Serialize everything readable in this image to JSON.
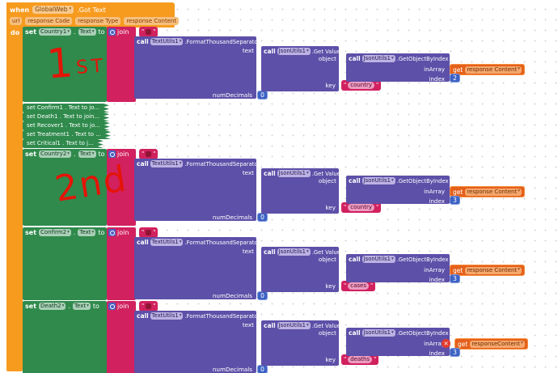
{
  "colors": {
    "event_orange": "#F79B1F",
    "setter_green": "#2F8A4C",
    "text_pink": "#D1215F",
    "procedure_purple": "#5D50A8",
    "number_blue": "#3D62C4",
    "variable_orange": "#E5601A",
    "error_red": "#E23B2E",
    "annotation_red": "#E41408"
  },
  "labels": {
    "when": "when",
    "do": "do",
    "set": "set",
    "dot": ".",
    "to": "to",
    "call": "call",
    "join": "join",
    "get": "get",
    "text": "text",
    "object": "object",
    "key": "key",
    "inArray": "inArray",
    "index": "index",
    "numDecimals": "numDecimals"
  },
  "when_block": {
    "component": "GlobalWeb",
    "event": ".Got Text",
    "params": [
      "url",
      "response Code",
      "response Type",
      "response Content"
    ]
  },
  "groups": [
    {
      "set_var": "Country1",
      "set_prop": "Text",
      "fts_component": "TextUtils1",
      "fts_method": ".FormatThousandSeparator",
      "getvalue_component": "JsonUtils1",
      "getvalue_method": ".Get Value",
      "gobi_component": "JsonUtils1",
      "gobi_method": ".GetObjectByIndex",
      "get_var": "response Content",
      "index_value": "2",
      "key_value": "country",
      "numdecimals_value": "0",
      "error": false
    },
    {
      "set_var": "Country2",
      "set_prop": "Text",
      "fts_component": "TextUtils1",
      "fts_method": ".FormatThousandSeparator",
      "getvalue_component": "JsonUtils1",
      "getvalue_method": ".Get Value",
      "gobi_component": "JsonUtils1",
      "gobi_method": ".GetObjectByIndex",
      "get_var": "response Content",
      "index_value": "3",
      "key_value": "country",
      "numdecimals_value": "0",
      "error": false
    },
    {
      "set_var": "Confirm2",
      "set_prop": "Text",
      "fts_component": "TextUtils1",
      "fts_method": ".FormatThousandSeparator",
      "getvalue_component": "JsonUtils1",
      "getvalue_method": ".Get Value",
      "gobi_component": "JsonUtils1",
      "gobi_method": ".GetObjectByIndex",
      "get_var": "response Content",
      "index_value": "3",
      "key_value": "cases",
      "numdecimals_value": "0",
      "error": false
    },
    {
      "set_var": "Death2",
      "set_prop": "Text",
      "fts_component": "TextUtils1",
      "fts_method": ".FormatThousandSeparator",
      "getvalue_component": "JsonUtils1",
      "getvalue_method": ".Get Value",
      "gobi_component": "JsonUtils1",
      "gobi_method": ".GetObjectByIndex",
      "get_var": "responseContent",
      "index_value": "3",
      "key_value": "deaths",
      "numdecimals_value": "0",
      "error": true
    }
  ],
  "collapsed": [
    {
      "label": "set Confirm1 . Text to jo..."
    },
    {
      "label": "set Death1 . Text to join..."
    },
    {
      "label": "set Recover1 . Text to jo..."
    },
    {
      "label": "set Treatment1 . Text to ..."
    },
    {
      "label": "set Critical1 . Text to j..."
    }
  ],
  "annotations": {
    "first_num": "1",
    "first_suffix": "ST",
    "second": "2nd"
  }
}
